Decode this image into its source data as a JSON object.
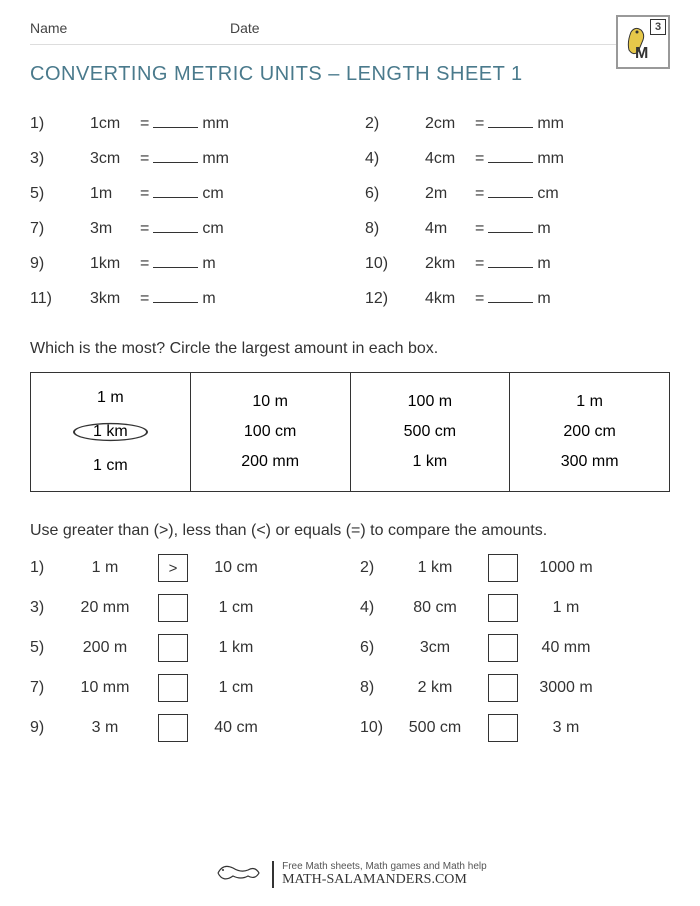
{
  "header": {
    "nameLabel": "Name",
    "dateLabel": "Date",
    "gradeNumber": "3"
  },
  "title": "CONVERTING METRIC UNITS – LENGTH SHEET 1",
  "section1": [
    {
      "n": "1)",
      "left": "1cm",
      "eq": "=",
      "unit": "mm"
    },
    {
      "n": "2)",
      "left": "2cm",
      "eq": "=",
      "unit": "mm"
    },
    {
      "n": "3)",
      "left": "3cm",
      "eq": "=",
      "unit": "mm"
    },
    {
      "n": "4)",
      "left": "4cm",
      "eq": "=",
      "unit": "mm"
    },
    {
      "n": "5)",
      "left": "1m",
      "eq": "=",
      "unit": "cm"
    },
    {
      "n": "6)",
      "left": "2m",
      "eq": "=",
      "unit": "cm"
    },
    {
      "n": "7)",
      "left": "3m",
      "eq": "=",
      "unit": "cm"
    },
    {
      "n": "8)",
      "left": "4m",
      "eq": "=",
      "unit": "m"
    },
    {
      "n": "9)",
      "left": "1km",
      "eq": "=",
      "unit": "m"
    },
    {
      "n": "10)",
      "left": "2km",
      "eq": "=",
      "unit": "m"
    },
    {
      "n": "11)",
      "left": "3km",
      "eq": "=",
      "unit": "m"
    },
    {
      "n": "12)",
      "left": "4km",
      "eq": "=",
      "unit": "m"
    }
  ],
  "instruction2": "Which is the most? Circle the largest amount in each box.",
  "boxes": [
    {
      "r1": "1 m",
      "r2": "1 km",
      "r3": "1 cm",
      "circled": "r2"
    },
    {
      "r1": "10 m",
      "r2": "100 cm",
      "r3": "200 mm",
      "circled": null
    },
    {
      "r1": "100 m",
      "r2": "500 cm",
      "r3": "1 km",
      "circled": null
    },
    {
      "r1": "1 m",
      "r2": "200 cm",
      "r3": "300 mm",
      "circled": null
    }
  ],
  "instruction3": "Use greater than (>), less than (<) or equals (=) to compare the amounts.",
  "section3": [
    {
      "n": "1)",
      "left": "1 m",
      "ans": ">",
      "right": "10 cm"
    },
    {
      "n": "2)",
      "left": "1 km",
      "ans": "",
      "right": "1000 m"
    },
    {
      "n": "3)",
      "left": "20 mm",
      "ans": "",
      "right": "1 cm"
    },
    {
      "n": "4)",
      "left": "80 cm",
      "ans": "",
      "right": "1 m"
    },
    {
      "n": "5)",
      "left": "200 m",
      "ans": "",
      "right": "1 km"
    },
    {
      "n": "6)",
      "left": "3cm",
      "ans": "",
      "right": "40 mm"
    },
    {
      "n": "7)",
      "left": "10 mm",
      "ans": "",
      "right": "1 cm"
    },
    {
      "n": "8)",
      "left": "2 km",
      "ans": "",
      "right": "3000 m"
    },
    {
      "n": "9)",
      "left": "3 m",
      "ans": "",
      "right": "40 cm"
    },
    {
      "n": "10)",
      "left": "500 cm",
      "ans": "",
      "right": "3 m"
    }
  ],
  "footer": {
    "line1": "Free Math sheets, Math games and Math help",
    "url": "MATH-SALAMANDERS.COM"
  }
}
